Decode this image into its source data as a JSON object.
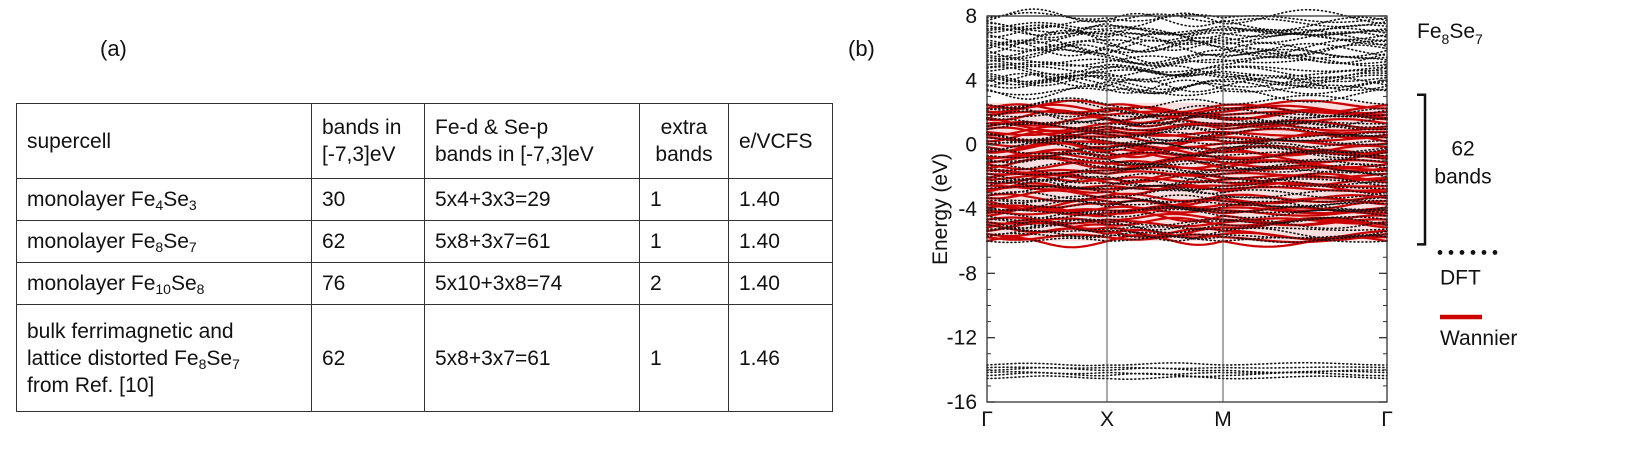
{
  "panels": {
    "a": "(a)",
    "b": "(b)"
  },
  "table": {
    "headers": [
      [
        "supercell"
      ],
      [
        "bands in",
        "[-7,3]eV"
      ],
      [
        "Fe-d & Se-p",
        "bands in [-7,3]eV"
      ],
      [
        "extra",
        "bands"
      ],
      [
        "e/VCFS"
      ]
    ],
    "rows": [
      {
        "prefix": "monolayer Fe",
        "sub1": "4",
        "mid": "Se",
        "sub2": "3",
        "bands": "30",
        "count": "5x4+3x3=29",
        "extra": "1",
        "evcfs": "1.40"
      },
      {
        "prefix": "monolayer Fe",
        "sub1": "8",
        "mid": "Se",
        "sub2": "7",
        "bands": "62",
        "count": "5x8+3x7=61",
        "extra": "1",
        "evcfs": "1.40"
      },
      {
        "prefix": "monolayer Fe",
        "sub1": "10",
        "mid": "Se",
        "sub2": "8",
        "bands": "76",
        "count": "5x10+3x8=74",
        "extra": "2",
        "evcfs": "1.40"
      }
    ],
    "last_row": {
      "line1": "bulk ferrimagnetic and",
      "line2_prefix": "lattice distorted Fe",
      "sub1": "8",
      "mid": "Se",
      "sub2": "7",
      "line3": "from Ref. [10]",
      "bands": "62",
      "count": "5x8+3x7=61",
      "extra": "1",
      "evcfs": "1.46"
    }
  },
  "chart_data": {
    "type": "line",
    "title_prefix": "Fe",
    "title_sub1": "8",
    "title_mid": "Se",
    "title_sub2": "7",
    "ylabel": "Energy (eV)",
    "ylim": [
      -16,
      8
    ],
    "yticks": [
      "8",
      "4",
      "0",
      "-4",
      "-8",
      "-12",
      "-16"
    ],
    "ytick_values": [
      8,
      4,
      0,
      -4,
      -8,
      -12,
      -16
    ],
    "k_labels": [
      "Γ",
      "X",
      "M",
      "Γ"
    ],
    "k_positions": [
      0,
      0.3,
      0.59,
      1.0
    ],
    "bracket_label": [
      "62",
      "bands"
    ],
    "bracket_range": [
      -6.2,
      3.1
    ],
    "wannier_window": [
      -6.0,
      2.6
    ],
    "dft_high_window": [
      3.3,
      8.0
    ],
    "dft_low_window": [
      -14.6,
      -13.6
    ],
    "legend": {
      "dft": "DFT",
      "wannier": "Wannier"
    },
    "colors": {
      "dft": "#111111",
      "wannier": "#cc0000",
      "wannier_fill": "#f4c4c4"
    }
  }
}
